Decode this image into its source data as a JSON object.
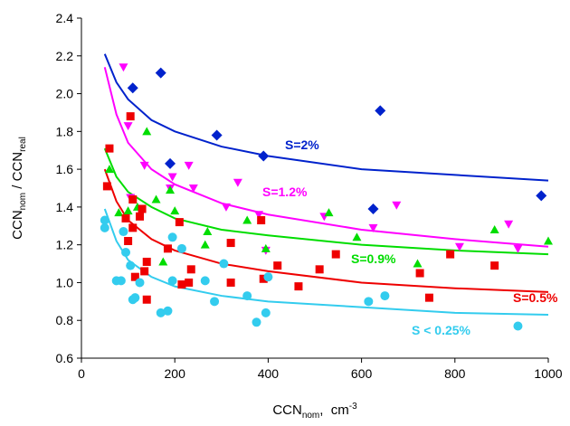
{
  "chart_data": {
    "type": "scatter",
    "xlabel": {
      "main": "CCN",
      "sub": "nom",
      "rest": ",  cm",
      "sup": "-3"
    },
    "ylabel": {
      "main": "CCN",
      "sub": "nom",
      "mid": " / CCN",
      "sub2": "real"
    },
    "xlim": [
      0,
      1000
    ],
    "xticks": [
      0,
      200,
      400,
      600,
      800,
      1000
    ],
    "ylim": [
      0.6,
      2.4
    ],
    "yticks": [
      0.6,
      0.8,
      {
        "value": 1,
        "label": "1.0"
      },
      1.2,
      1.4,
      1.6,
      1.8,
      {
        "value": 2,
        "label": "2.0"
      },
      2.2,
      2.4
    ],
    "grid": false,
    "fit_x": [
      50,
      75,
      100,
      150,
      200,
      300,
      400,
      600,
      800,
      1000
    ],
    "series": [
      {
        "name": "S=2%",
        "color": "#0022cc",
        "marker": "diamond",
        "x": [
          110,
          170,
          190,
          290,
          390,
          625,
          640,
          985
        ],
        "values": [
          2.03,
          2.11,
          1.63,
          1.78,
          1.67,
          1.39,
          1.91,
          1.46
        ],
        "fit": [
          2.21,
          2.06,
          1.97,
          1.86,
          1.8,
          1.72,
          1.67,
          1.6,
          1.57,
          1.54
        ]
      },
      {
        "name": "S=1.2%",
        "color": "#ff00ff",
        "marker": "triangle-down",
        "x": [
          90,
          100,
          105,
          135,
          190,
          195,
          230,
          240,
          310,
          335,
          380,
          395,
          520,
          625,
          675,
          810,
          915,
          935
        ],
        "values": [
          2.14,
          1.83,
          1.45,
          1.62,
          1.5,
          1.56,
          1.62,
          1.5,
          1.4,
          1.53,
          1.36,
          1.17,
          1.35,
          1.29,
          1.41,
          1.19,
          1.31,
          1.18
        ],
        "fit": [
          2.14,
          1.89,
          1.74,
          1.6,
          1.52,
          1.42,
          1.36,
          1.28,
          1.23,
          1.19
        ]
      },
      {
        "name": "S=0.9%",
        "color": "#00dd00",
        "marker": "triangle-up",
        "x": [
          60,
          80,
          100,
          120,
          140,
          160,
          175,
          190,
          200,
          270,
          265,
          355,
          395,
          530,
          590,
          720,
          885,
          1000
        ],
        "values": [
          1.6,
          1.37,
          1.38,
          1.4,
          1.8,
          1.44,
          1.11,
          1.49,
          1.38,
          1.27,
          1.2,
          1.33,
          1.18,
          1.37,
          1.24,
          1.1,
          1.28,
          1.22
        ],
        "fit": [
          1.71,
          1.56,
          1.48,
          1.4,
          1.34,
          1.28,
          1.25,
          1.2,
          1.17,
          1.15
        ]
      },
      {
        "name": "S=0.5%",
        "color": "#ee0000",
        "marker": "square",
        "x": [
          60,
          55,
          95,
          100,
          105,
          110,
          110,
          115,
          125,
          130,
          135,
          140,
          140,
          185,
          210,
          215,
          230,
          235,
          320,
          320,
          385,
          390,
          420,
          465,
          510,
          545,
          725,
          745,
          790,
          885
        ],
        "values": [
          1.71,
          1.51,
          1.34,
          1.22,
          1.88,
          1.29,
          1.44,
          1.03,
          1.35,
          1.39,
          1.06,
          0.91,
          1.11,
          1.18,
          1.32,
          0.99,
          1.0,
          1.07,
          1.21,
          1.0,
          1.33,
          1.02,
          1.09,
          0.98,
          1.07,
          1.15,
          1.05,
          0.92,
          1.15,
          1.09
        ],
        "fit": [
          1.6,
          1.43,
          1.33,
          1.23,
          1.17,
          1.1,
          1.06,
          1.0,
          0.97,
          0.95
        ]
      },
      {
        "name": "S < 0.25%",
        "color": "#33ccee",
        "marker": "circle",
        "x": [
          50,
          50,
          75,
          85,
          90,
          95,
          105,
          110,
          115,
          125,
          170,
          185,
          195,
          195,
          215,
          265,
          285,
          305,
          355,
          375,
          395,
          400,
          615,
          650,
          935
        ],
        "values": [
          1.33,
          1.29,
          1.01,
          1.01,
          1.27,
          1.16,
          1.09,
          0.91,
          0.92,
          1.0,
          0.84,
          0.85,
          1.24,
          1.01,
          1.18,
          1.01,
          0.9,
          1.1,
          0.93,
          0.79,
          0.84,
          1.03,
          0.9,
          0.93,
          0.77
        ],
        "fit": [
          1.39,
          1.22,
          1.12,
          1.03,
          0.98,
          0.93,
          0.9,
          0.87,
          0.84,
          0.83
        ]
      }
    ]
  }
}
